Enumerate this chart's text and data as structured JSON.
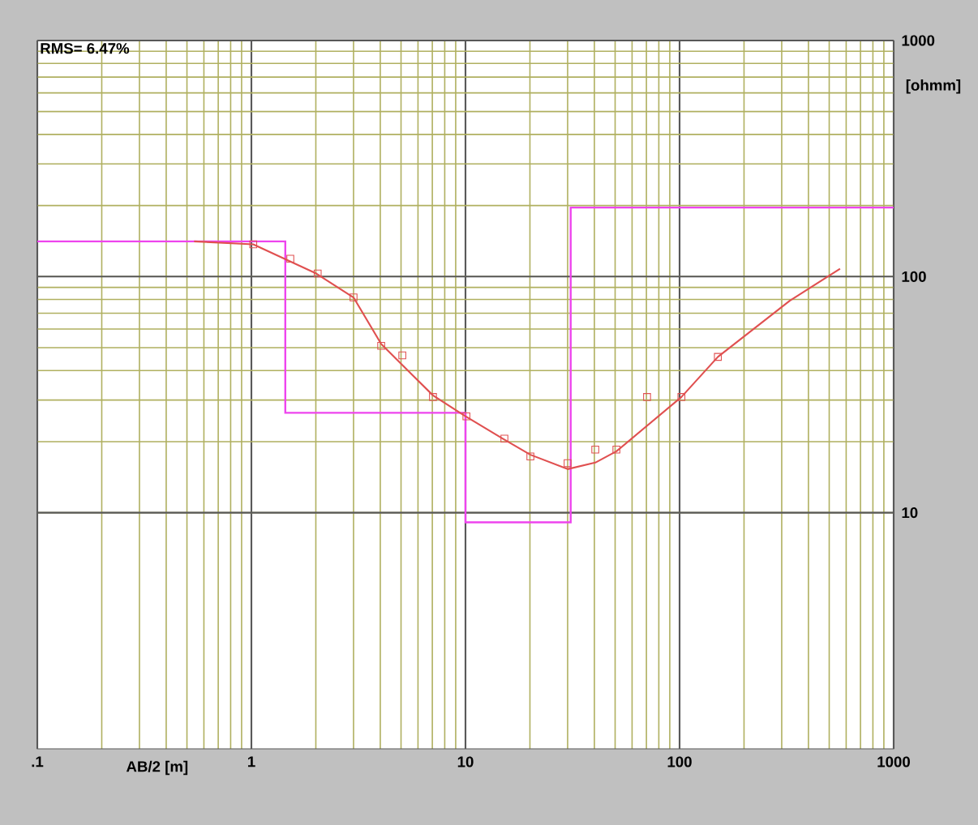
{
  "chart_data": {
    "type": "line",
    "xlabel": "AB/2 [m]",
    "ylabel": "[ohmm]",
    "annotations": [
      "RMS= 6.47%"
    ],
    "log": "xy",
    "grid": true,
    "xlim": [
      0.1,
      1000
    ],
    "ylim": [
      1,
      1000
    ],
    "xticks": [
      {
        "value": 0.1,
        "label": ".1"
      },
      1,
      10,
      100,
      1000
    ],
    "yticks": [
      10,
      100,
      1000
    ],
    "series": [
      {
        "type": "step",
        "color": "#ee44ee",
        "x": [
          0.1,
          1.44,
          10,
          31,
          1000
        ],
        "values": [
          141,
          26.5,
          9.1,
          196,
          196
        ]
      },
      {
        "color": "#e05050",
        "x": [
          0.54,
          1.02,
          2.01,
          3.0,
          4.04,
          7.05,
          10,
          14.9,
          20.1,
          30,
          40.4,
          50.7,
          102,
          151,
          327,
          562
        ],
        "values": [
          141,
          137,
          103,
          81.6,
          51.8,
          31.4,
          25.6,
          20.6,
          17.6,
          15.3,
          16.3,
          18.2,
          30.9,
          45.7,
          79,
          108
        ]
      },
      {
        "type": "scatter",
        "color": "#e05050",
        "marker": "square",
        "x": [
          1.02,
          1.52,
          2.04,
          3.0,
          4.04,
          5.07,
          7.05,
          10.1,
          15.2,
          20.1,
          30,
          40.4,
          50.7,
          70.5,
          102,
          151
        ],
        "values": [
          137,
          119,
          103,
          81.6,
          50.9,
          46.4,
          30.9,
          25.6,
          20.6,
          17.3,
          16.2,
          18.5,
          18.5,
          30.9,
          30.9,
          45.7
        ]
      }
    ]
  }
}
